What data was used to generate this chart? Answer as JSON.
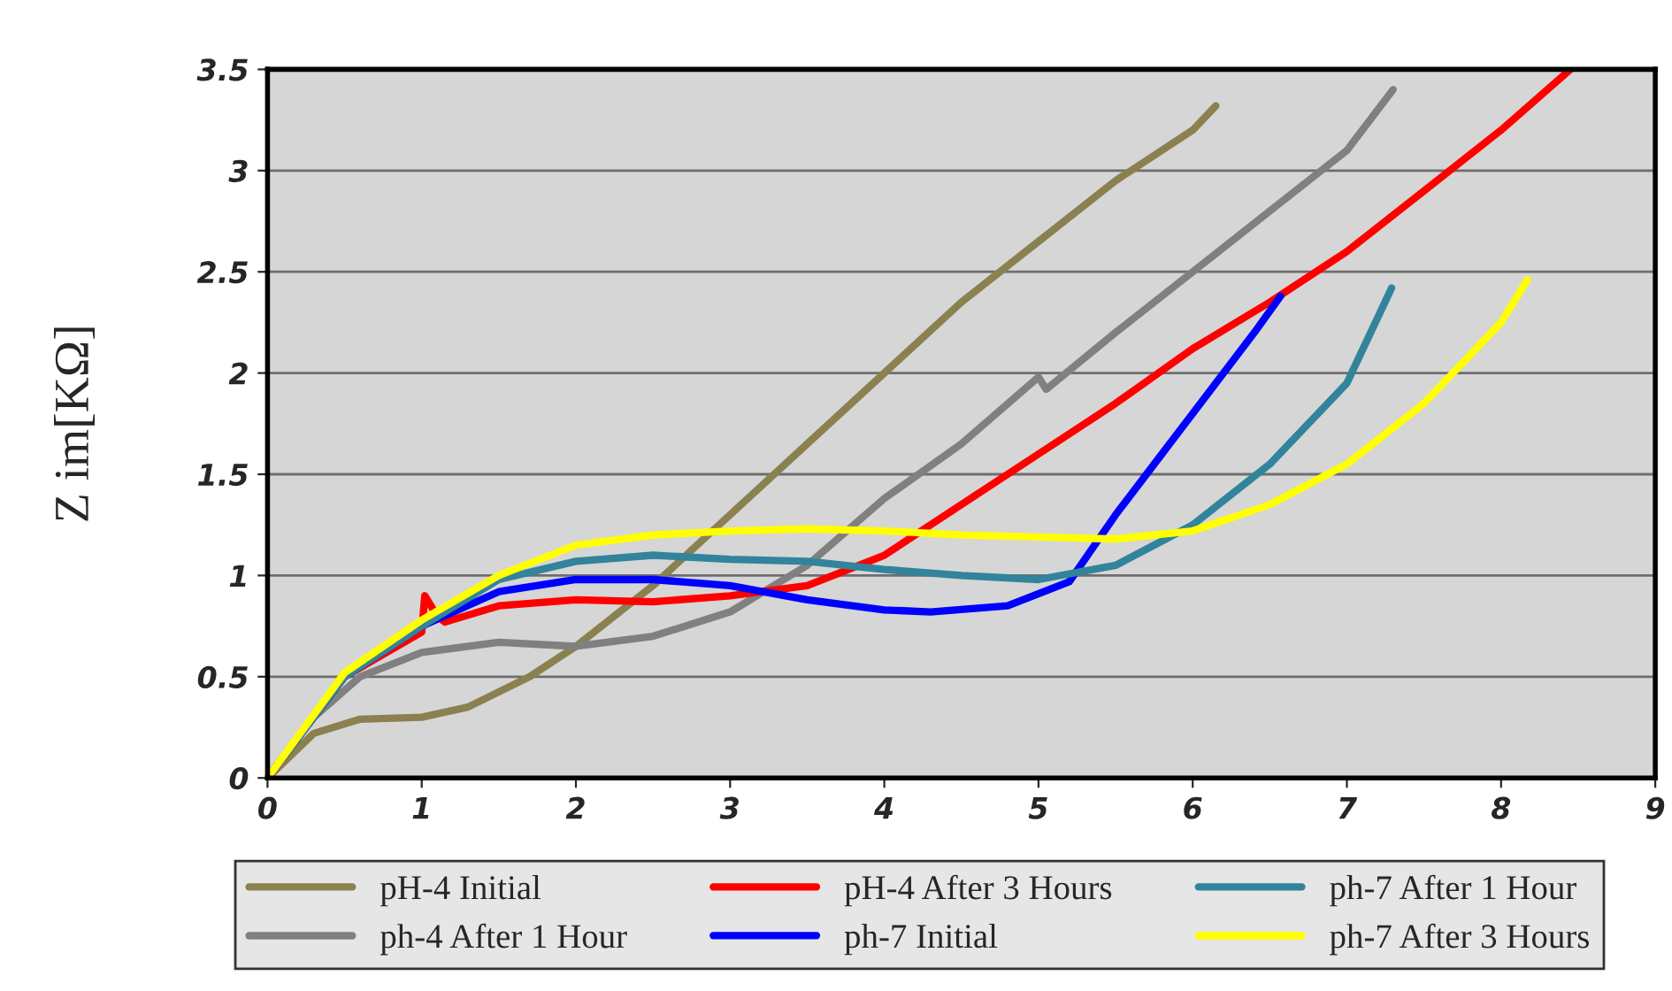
{
  "chart_data": {
    "type": "line",
    "ylabel": "Z im[KΩ]",
    "xlim": [
      0,
      9
    ],
    "xticks": [
      0,
      1,
      2,
      3,
      4,
      5,
      6,
      7,
      8,
      9
    ],
    "ylim": [
      0,
      3.5
    ],
    "yticks": [
      0,
      0.5,
      1,
      1.5,
      2,
      2.5,
      3,
      3.5
    ],
    "grid": "y",
    "legend": "bottom",
    "marker": "none",
    "line_style": "solid",
    "series": [
      {
        "name": "pH-4 Initial",
        "color": "#8b8050",
        "x": [
          0,
          0.3,
          0.6,
          1,
          1.3,
          1.7,
          2,
          2.5,
          3,
          3.5,
          4,
          4.5,
          5,
          5.5,
          6,
          6.15
        ],
        "values": [
          0,
          0.22,
          0.29,
          0.3,
          0.35,
          0.5,
          0.65,
          0.95,
          1.3,
          1.65,
          2.0,
          2.35,
          2.65,
          2.95,
          3.2,
          3.32
        ]
      },
      {
        "name": "ph-4 After 1 Hour",
        "color": "#808080",
        "x": [
          0,
          0.3,
          0.6,
          1,
          1.5,
          2,
          2.5,
          3,
          3.5,
          4,
          4.5,
          5,
          5.05,
          5.5,
          6,
          6.5,
          7,
          7.3
        ],
        "values": [
          0,
          0.3,
          0.5,
          0.62,
          0.67,
          0.65,
          0.7,
          0.82,
          1.05,
          1.38,
          1.65,
          1.98,
          1.92,
          2.2,
          2.5,
          2.8,
          3.1,
          3.4
        ]
      },
      {
        "name": "pH-4 After 3 Hours",
        "color": "#ff0000",
        "x": [
          0,
          0.5,
          1,
          1.02,
          1.1,
          1.15,
          1.5,
          2,
          2.5,
          3,
          3.5,
          4,
          4.5,
          5,
          5.5,
          6,
          6.5,
          7,
          7.5,
          8,
          8.45
        ],
        "values": [
          0,
          0.5,
          0.72,
          0.9,
          0.8,
          0.77,
          0.85,
          0.88,
          0.87,
          0.9,
          0.95,
          1.1,
          1.35,
          1.6,
          1.85,
          2.12,
          2.35,
          2.6,
          2.9,
          3.2,
          3.5
        ]
      },
      {
        "name": "ph-7 Initial",
        "color": "#0000ff",
        "x": [
          0,
          0.5,
          1,
          1.5,
          2,
          2.5,
          3,
          3.5,
          4,
          4.3,
          4.8,
          5.2,
          5.5,
          5.8,
          6.1,
          6.4,
          6.57
        ],
        "values": [
          0,
          0.5,
          0.75,
          0.92,
          0.98,
          0.98,
          0.95,
          0.88,
          0.83,
          0.82,
          0.85,
          0.97,
          1.3,
          1.6,
          1.9,
          2.2,
          2.38
        ]
      },
      {
        "name": "ph-7 After 1 Hour",
        "color": "#31849b",
        "x": [
          0,
          0.5,
          1,
          1.5,
          2,
          2.5,
          3,
          3.5,
          4,
          4.5,
          5,
          5.5,
          6,
          6.5,
          7,
          7.29
        ],
        "values": [
          0,
          0.5,
          0.75,
          0.98,
          1.07,
          1.1,
          1.08,
          1.07,
          1.03,
          1.0,
          0.98,
          1.05,
          1.25,
          1.55,
          1.95,
          2.42
        ]
      },
      {
        "name": "ph-7 After 3 Hours",
        "color": "#ffff00",
        "x": [
          0,
          0.5,
          1,
          1.5,
          2,
          2.5,
          3,
          3.5,
          4,
          4.5,
          5,
          5.5,
          6,
          6.5,
          7,
          7.5,
          8,
          8.17
        ],
        "values": [
          0,
          0.52,
          0.78,
          1.0,
          1.15,
          1.2,
          1.22,
          1.23,
          1.22,
          1.2,
          1.19,
          1.18,
          1.22,
          1.35,
          1.55,
          1.85,
          2.25,
          2.46
        ]
      }
    ]
  }
}
